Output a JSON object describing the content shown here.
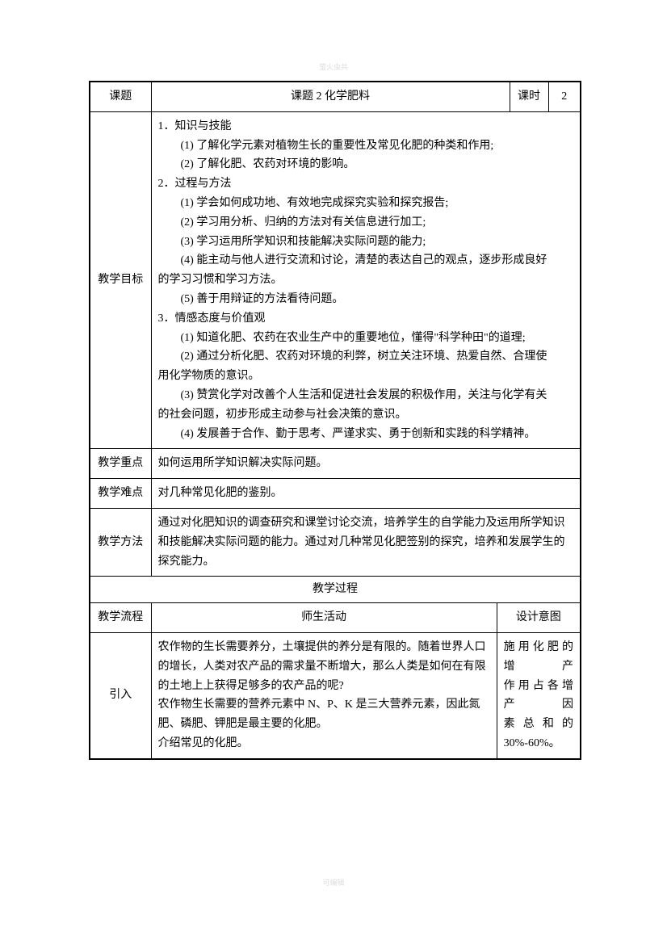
{
  "watermark_top": "萤火虫共",
  "watermark_bottom": "可编辑",
  "header": {
    "topic_label": "课题",
    "topic_title": "课题 2 化学肥料",
    "period_label": "课时",
    "period_value": "2"
  },
  "rows": {
    "objective": {
      "label": "教学目标",
      "h1": "1．知识与技能",
      "h1_1": "(1) 了解化学元素对植物生长的重要性及常见化肥的种类和作用;",
      "h1_2": "(2) 了解化肥、农药对环境的影响。",
      "h2": "2．过程与方法",
      "h2_1": "(1) 学会如何成功地、有效地完成探究实验和探究报告;",
      "h2_2": "(2) 学习用分析、归纳的方法对有关信息进行加工;",
      "h2_3": "(3) 学习运用所学知识和技能解决实际问题的能力;",
      "h2_4a": "(4) 能主动与他人进行交流和讨论，清楚的表达自己的观点，逐步形成良好",
      "h2_4b": "的学习习惯和学习方法。",
      "h2_5": "(5) 善于用辩证的方法看待问题。",
      "h3": "3．情感态度与价值观",
      "h3_1": "(1) 知道化肥、农药在农业生产中的重要地位，懂得\"科学种田\"的道理;",
      "h3_2a": "(2) 通过分析化肥、农药对环境的利弊，树立关注环境、热爱自然、合理使",
      "h3_2b": "用化学物质的意识。",
      "h3_3a": "(3) 赞赏化学对改善个人生活和促进社会发展的积极作用，关注与化学有关",
      "h3_3b": "的社会问题，初步形成主动参与社会决策的意识。",
      "h3_4": "(4) 发展善于合作、勤于思考、严谨求实、勇于创新和实践的科学精神。"
    },
    "key": {
      "label": "教学重点",
      "content": "如何运用所学知识解决实际问题。"
    },
    "difficult": {
      "label": "教学难点",
      "content": "对几种常见化肥的鉴别。"
    },
    "method": {
      "label": "教学方法",
      "content": "通过对化肥知识的调查研究和课堂讨论交流，培养学生的自学能力及运用所学知识和技能解决实际问题的能力。通过对几种常见化肥签别的探究，培养和发展学生的探究能力。"
    },
    "process_header": "教学过程",
    "flow": {
      "label": "教学流程",
      "activity_label": "师生活动",
      "design_label": "设计意图"
    },
    "intro": {
      "label": "引入",
      "activity_1": "农作物的生长需要养分，土壤提供的养分是有限的。随着世界人口的增长，人类对农产品的需求量不断增大，那么人类是如何在有限的土地上上获得足够多的农产品的呢?",
      "activity_2": "农作物生长需要的营养元素中 N、P、K 是三大营养元素，因此氮肥、磷肥、钾肥是最主要的化肥。",
      "activity_3": "介绍常见的化肥。",
      "design_1": "施 用 化 肥 的 增 产",
      "design_2": "作 用 占 各 增 产 因",
      "design_3a": "素",
      "design_3b": "总",
      "design_3c": "和",
      "design_3d": "的",
      "design_4": "30%-60%。"
    }
  }
}
